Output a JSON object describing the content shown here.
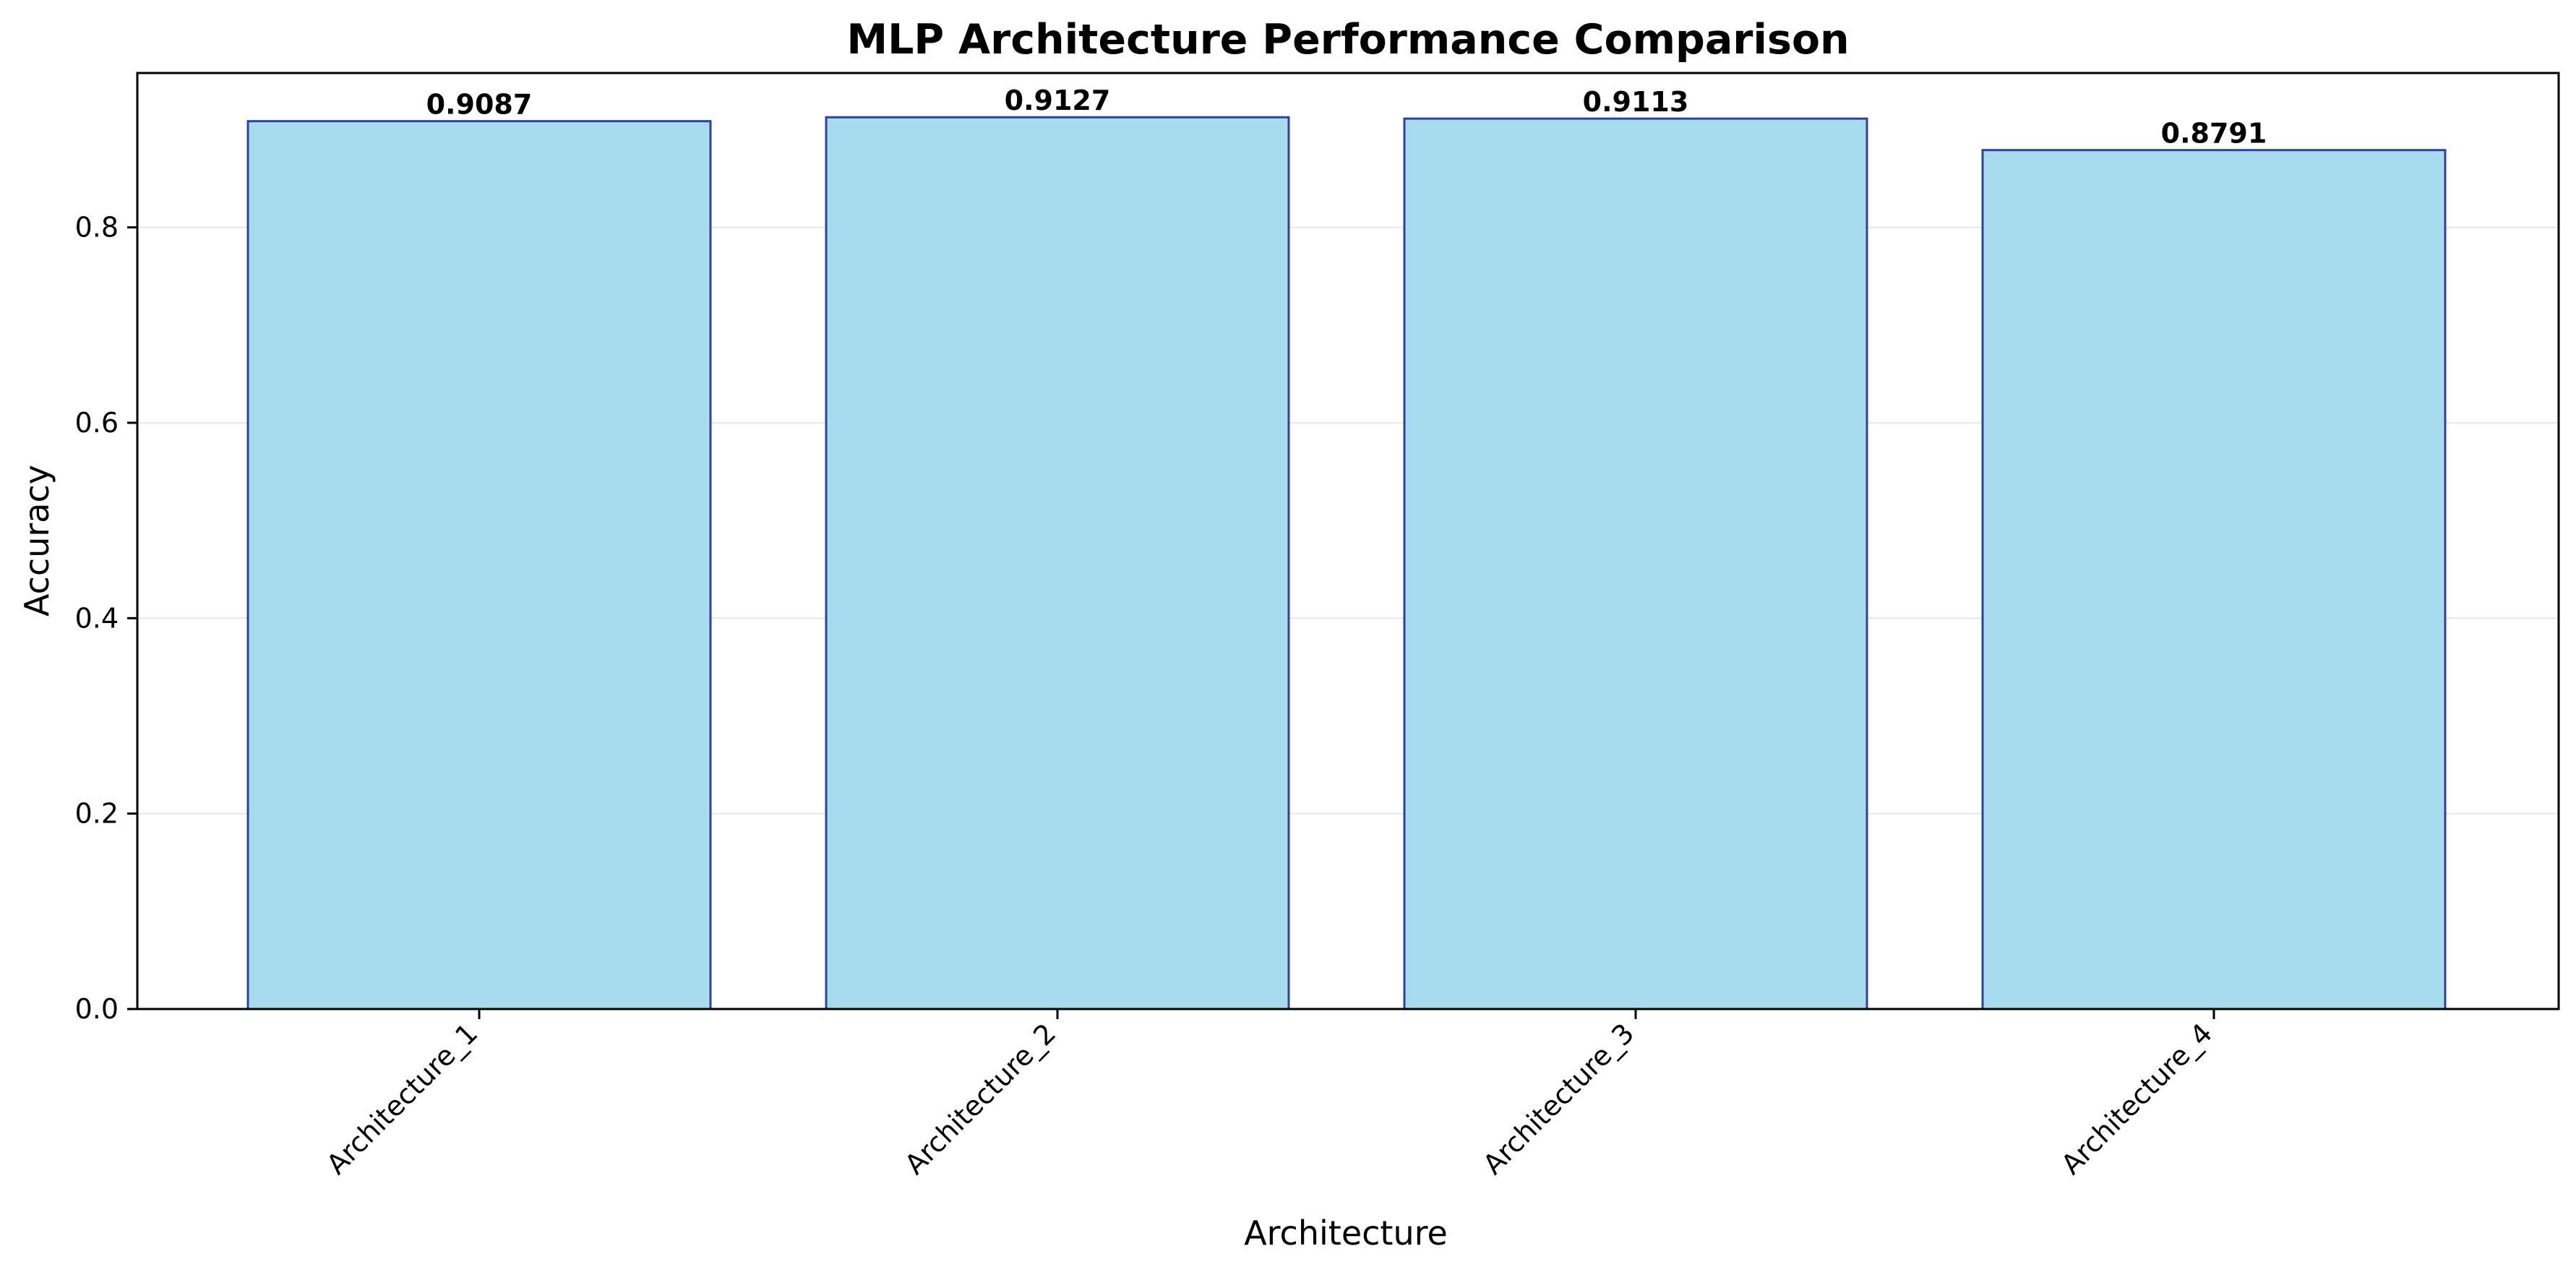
{
  "chart_data": {
    "type": "bar",
    "title": "MLP Architecture Performance Comparison",
    "xlabel": "Architecture",
    "ylabel": "Accuracy",
    "categories": [
      "Architecture_1",
      "Architecture_2",
      "Architecture_3",
      "Architecture_4"
    ],
    "values": [
      0.9087,
      0.9127,
      0.9113,
      0.8791
    ],
    "value_labels": [
      "0.9087",
      "0.9127",
      "0.9113",
      "0.8791"
    ],
    "ylim": [
      0,
      0.958
    ],
    "yticks": [
      0.0,
      0.2,
      0.4,
      0.6,
      0.8
    ],
    "ytick_labels": [
      "0.0",
      "0.2",
      "0.4",
      "0.6",
      "0.8"
    ],
    "grid": "y",
    "legend": "none",
    "colors": {
      "bar_fill": "#a9dbef",
      "bar_edge": "#3040a0",
      "grid": "#e6e6e6",
      "axis": "#000000"
    }
  }
}
